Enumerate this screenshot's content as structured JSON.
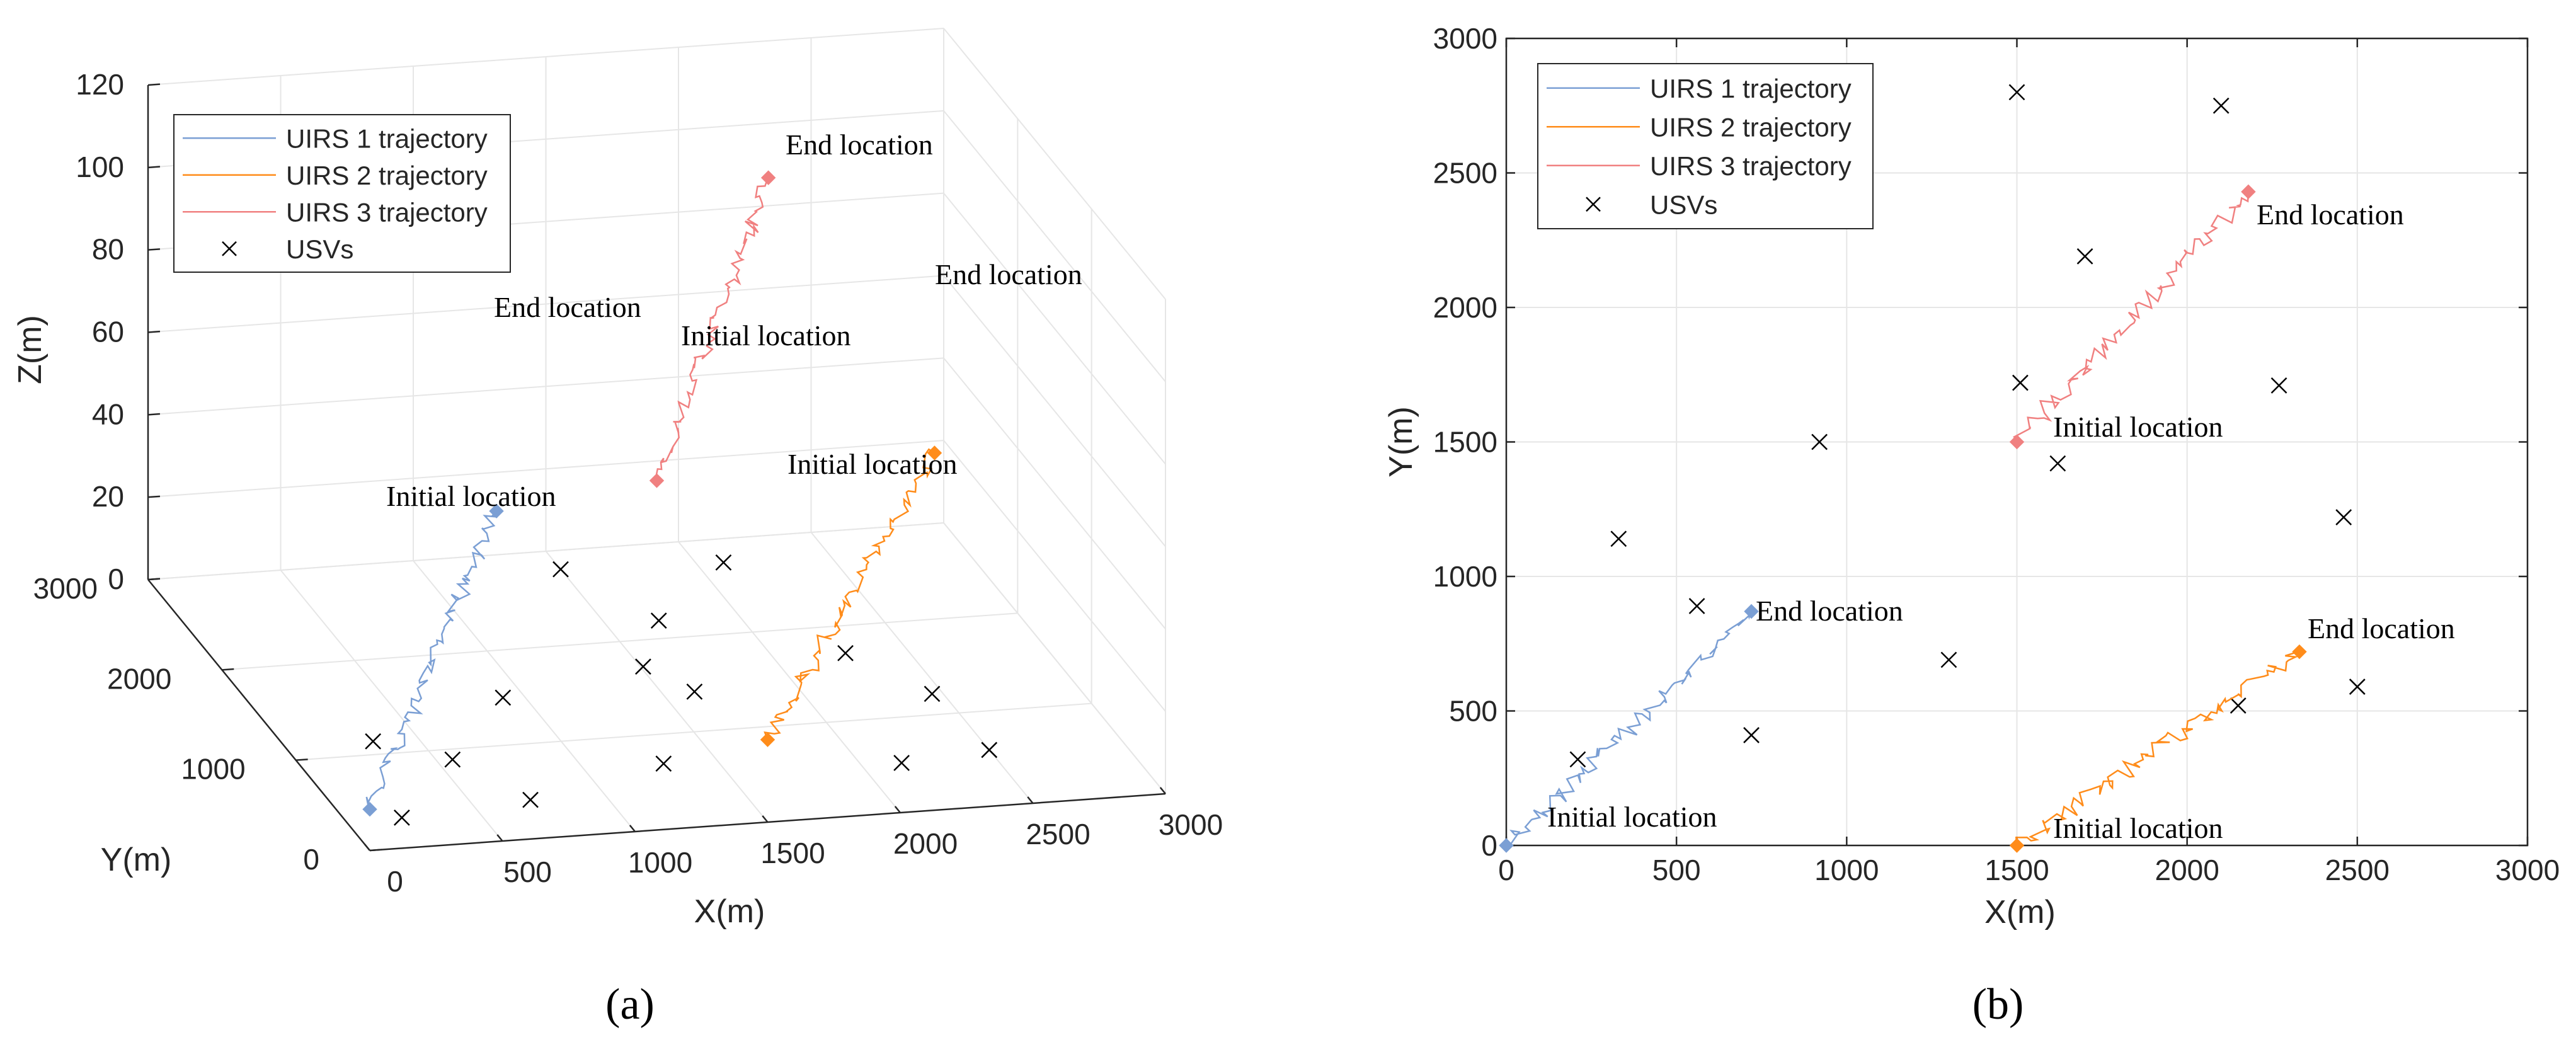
{
  "chart_data": [
    {
      "type": "line",
      "panel_label": "(a)",
      "projection": "3d",
      "xlabel": "X(m)",
      "ylabel": "Y(m)",
      "zlabel": "Z(m)",
      "xlim": [
        0,
        3000
      ],
      "ylim": [
        0,
        3000
      ],
      "zlim": [
        0,
        120
      ],
      "xticks": [
        0,
        500,
        1000,
        1500,
        2000,
        2500,
        3000
      ],
      "yticks": [
        0,
        1000,
        2000,
        3000
      ],
      "zticks": [
        0,
        20,
        40,
        60,
        80,
        100,
        120
      ],
      "grid": true,
      "legend_position": "top-left",
      "legend": [
        "UIRS 1 trajectory",
        "UIRS 2 trajectory",
        "UIRS 3 trajectory",
        "USVs"
      ],
      "series": [
        {
          "name": "UIRS 1 trajectory",
          "color": "#7b9fd4",
          "start": [
            0,
            0,
            10
          ],
          "end": [
            720,
            870,
            60
          ]
        },
        {
          "name": "UIRS 2 trajectory",
          "color": "#ff8c1a",
          "start": [
            1500,
            0,
            20
          ],
          "end": [
            2330,
            720,
            70
          ]
        },
        {
          "name": "UIRS 3 trajectory",
          "color": "#f08080",
          "start": [
            1500,
            1500,
            50
          ],
          "end": [
            2180,
            2430,
            100
          ]
        }
      ],
      "usvs": [
        [
          210,
          320
        ],
        [
          330,
          1140
        ],
        [
          560,
          890
        ],
        [
          720,
          410
        ],
        [
          920,
          1500
        ],
        [
          1300,
          690
        ],
        [
          1510,
          1720
        ],
        [
          1500,
          2800
        ],
        [
          1620,
          1420
        ],
        [
          1700,
          2190
        ],
        [
          2100,
          2750
        ],
        [
          2150,
          520
        ],
        [
          2270,
          1710
        ],
        [
          2460,
          1220
        ],
        [
          2500,
          590
        ]
      ],
      "annotations": [
        {
          "text": "Initial location",
          "series": 0,
          "at": "start"
        },
        {
          "text": "End location",
          "series": 0,
          "at": "end"
        },
        {
          "text": "Initial location",
          "series": 1,
          "at": "start"
        },
        {
          "text": "End location",
          "series": 1,
          "at": "end"
        },
        {
          "text": "Initial location",
          "series": 2,
          "at": "start"
        },
        {
          "text": "End location",
          "series": 2,
          "at": "end"
        }
      ]
    },
    {
      "type": "line",
      "panel_label": "(b)",
      "projection": "2d",
      "xlabel": "X(m)",
      "ylabel": "Y(m)",
      "xlim": [
        0,
        3000
      ],
      "ylim": [
        0,
        3000
      ],
      "xticks": [
        0,
        500,
        1000,
        1500,
        2000,
        2500,
        3000
      ],
      "yticks": [
        0,
        500,
        1000,
        1500,
        2000,
        2500,
        3000
      ],
      "grid": true,
      "legend_position": "top-left",
      "legend": [
        "UIRS 1 trajectory",
        "UIRS 2 trajectory",
        "UIRS 3 trajectory",
        "USVs"
      ],
      "series": [
        {
          "name": "UIRS 1 trajectory",
          "color": "#7b9fd4",
          "start": [
            0,
            0
          ],
          "end": [
            720,
            870
          ]
        },
        {
          "name": "UIRS 2 trajectory",
          "color": "#ff8c1a",
          "start": [
            1500,
            0
          ],
          "end": [
            2330,
            720
          ]
        },
        {
          "name": "UIRS 3 trajectory",
          "color": "#f08080",
          "start": [
            1500,
            1500
          ],
          "end": [
            2180,
            2430
          ]
        }
      ],
      "usvs": [
        [
          210,
          320
        ],
        [
          330,
          1140
        ],
        [
          560,
          890
        ],
        [
          720,
          410
        ],
        [
          920,
          1500
        ],
        [
          1300,
          690
        ],
        [
          1510,
          1720
        ],
        [
          1500,
          2800
        ],
        [
          1620,
          1420
        ],
        [
          1700,
          2190
        ],
        [
          2100,
          2750
        ],
        [
          2150,
          520
        ],
        [
          2270,
          1710
        ],
        [
          2460,
          1220
        ],
        [
          2500,
          590
        ]
      ],
      "annotations": [
        {
          "text": "Initial location",
          "series": 0,
          "at": "start"
        },
        {
          "text": "End location",
          "series": 0,
          "at": "end"
        },
        {
          "text": "Initial location",
          "series": 1,
          "at": "start"
        },
        {
          "text": "End location",
          "series": 1,
          "at": "end"
        },
        {
          "text": "Initial location",
          "series": 2,
          "at": "start"
        },
        {
          "text": "End location",
          "series": 2,
          "at": "end"
        }
      ]
    }
  ]
}
